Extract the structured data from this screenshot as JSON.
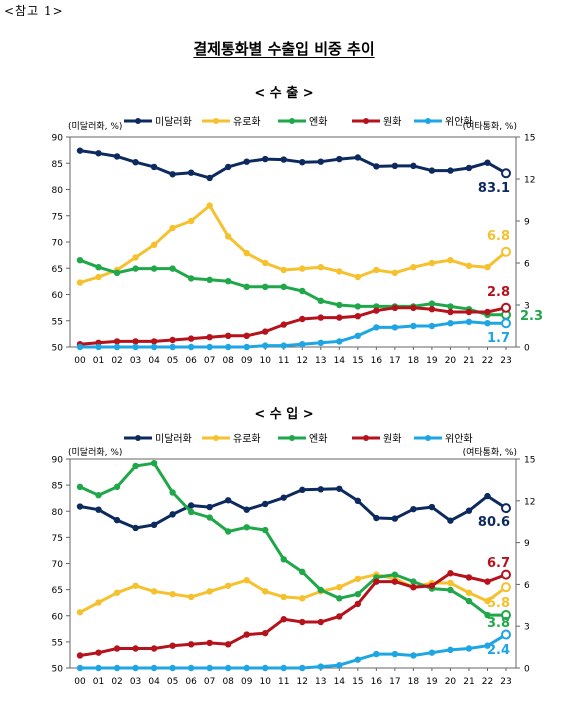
{
  "ref_note": "<참고 1>",
  "title": "결제통화별 수출입 비중 추이",
  "chart_data": [
    {
      "type": "line",
      "title": "< 수   출 >",
      "y_left_label": "(미달러화, %)",
      "y_right_label": "(여타통화, %)",
      "y_left_lim": [
        50,
        90
      ],
      "y_left_ticks": [
        50,
        55,
        60,
        65,
        70,
        75,
        80,
        85,
        90
      ],
      "y_right_lim": [
        0,
        15
      ],
      "y_right_ticks": [
        0,
        3,
        6,
        9,
        12,
        15
      ],
      "grid": false,
      "legend_position": "top",
      "x": [
        "00",
        "01",
        "02",
        "03",
        "04",
        "05",
        "06",
        "07",
        "08",
        "09",
        "10",
        "11",
        "12",
        "13",
        "14",
        "15",
        "16",
        "17",
        "18",
        "19",
        "20",
        "21",
        "22",
        "23"
      ],
      "series": [
        {
          "name": "미달러화",
          "axis": "left",
          "color": "#0d2a5e",
          "end_label": "83.1",
          "values": [
            87.4,
            86.9,
            86.3,
            85.2,
            84.3,
            82.9,
            83.2,
            82.2,
            84.3,
            85.3,
            85.8,
            85.7,
            85.2,
            85.3,
            85.8,
            86.1,
            84.4,
            84.5,
            84.5,
            83.6,
            83.6,
            84.1,
            85.1,
            83.1
          ]
        },
        {
          "name": "유로화",
          "axis": "right",
          "color": "#f5c12e",
          "end_label": "6.8",
          "values": [
            4.6,
            5.0,
            5.5,
            6.4,
            7.3,
            8.5,
            9.0,
            10.1,
            7.9,
            6.7,
            6.0,
            5.5,
            5.6,
            5.7,
            5.4,
            5.0,
            5.5,
            5.3,
            5.7,
            6.0,
            6.2,
            5.8,
            5.7,
            6.8
          ]
        },
        {
          "name": "엔화",
          "axis": "right",
          "color": "#1fa74a",
          "end_label": "2.3",
          "values": [
            6.2,
            5.7,
            5.3,
            5.6,
            5.6,
            5.6,
            4.9,
            4.8,
            4.7,
            4.3,
            4.3,
            4.3,
            4.0,
            3.3,
            3.0,
            2.9,
            2.9,
            2.9,
            2.9,
            3.1,
            2.9,
            2.7,
            2.3,
            2.3
          ]
        },
        {
          "name": "원화",
          "axis": "right",
          "color": "#b5121b",
          "end_label": "2.8",
          "values": [
            0.2,
            0.3,
            0.4,
            0.4,
            0.4,
            0.5,
            0.6,
            0.7,
            0.8,
            0.8,
            1.1,
            1.6,
            2.0,
            2.1,
            2.1,
            2.2,
            2.6,
            2.8,
            2.8,
            2.7,
            2.5,
            2.5,
            2.5,
            2.8
          ]
        },
        {
          "name": "위안화",
          "axis": "right",
          "color": "#1ea6e4",
          "end_label": "1.7",
          "values": [
            0.0,
            0.0,
            0.0,
            0.0,
            0.0,
            0.0,
            0.0,
            0.0,
            0.0,
            0.0,
            0.1,
            0.1,
            0.2,
            0.3,
            0.4,
            0.8,
            1.4,
            1.4,
            1.5,
            1.5,
            1.7,
            1.8,
            1.7,
            1.7
          ]
        }
      ]
    },
    {
      "type": "line",
      "title": "< 수   입 >",
      "y_left_label": "(미달러화, %)",
      "y_right_label": "(여타통화, %)",
      "y_left_lim": [
        50,
        90
      ],
      "y_left_ticks": [
        50,
        55,
        60,
        65,
        70,
        75,
        80,
        85,
        90
      ],
      "y_right_lim": [
        0,
        15
      ],
      "y_right_ticks": [
        0,
        3,
        6,
        9,
        12,
        15
      ],
      "grid": false,
      "legend_position": "top",
      "x": [
        "00",
        "01",
        "02",
        "03",
        "04",
        "05",
        "06",
        "07",
        "08",
        "09",
        "10",
        "11",
        "12",
        "13",
        "14",
        "15",
        "16",
        "17",
        "18",
        "19",
        "20",
        "21",
        "22",
        "23"
      ],
      "series": [
        {
          "name": "미달러화",
          "axis": "left",
          "color": "#0d2a5e",
          "end_label": "80.6",
          "values": [
            80.9,
            80.3,
            78.3,
            76.8,
            77.4,
            79.4,
            81.1,
            80.8,
            82.1,
            80.3,
            81.4,
            82.6,
            84.1,
            84.2,
            84.3,
            82.0,
            78.7,
            78.6,
            80.4,
            80.8,
            78.2,
            80.1,
            82.9,
            80.6
          ]
        },
        {
          "name": "유로화",
          "axis": "right",
          "color": "#f5c12e",
          "end_label": "5.8",
          "values": [
            4.0,
            4.7,
            5.4,
            5.9,
            5.5,
            5.3,
            5.1,
            5.5,
            5.9,
            6.3,
            5.5,
            5.1,
            5.0,
            5.5,
            5.8,
            6.4,
            6.7,
            6.4,
            5.8,
            6.1,
            6.1,
            5.4,
            4.8,
            5.8
          ]
        },
        {
          "name": "엔화",
          "axis": "right",
          "color": "#1fa74a",
          "end_label": "3.8",
          "values": [
            13.0,
            12.4,
            13.0,
            14.5,
            14.7,
            12.6,
            11.2,
            10.8,
            9.8,
            10.1,
            9.9,
            7.8,
            6.9,
            5.6,
            5.0,
            5.3,
            6.5,
            6.7,
            6.2,
            5.7,
            5.6,
            4.8,
            3.8,
            3.8
          ]
        },
        {
          "name": "원화",
          "axis": "right",
          "color": "#b5121b",
          "end_label": "6.7",
          "values": [
            0.9,
            1.1,
            1.4,
            1.4,
            1.4,
            1.6,
            1.7,
            1.8,
            1.7,
            2.4,
            2.5,
            3.5,
            3.3,
            3.3,
            3.7,
            4.6,
            6.2,
            6.2,
            5.8,
            5.9,
            6.8,
            6.5,
            6.2,
            6.7
          ]
        },
        {
          "name": "위안화",
          "axis": "right",
          "color": "#1ea6e4",
          "end_label": "2.4",
          "values": [
            0.0,
            0.0,
            0.0,
            0.0,
            0.0,
            0.0,
            0.0,
            0.0,
            0.0,
            0.0,
            0.0,
            0.0,
            0.0,
            0.1,
            0.2,
            0.6,
            1.0,
            1.0,
            0.9,
            1.1,
            1.3,
            1.4,
            1.6,
            2.4
          ]
        }
      ]
    }
  ]
}
